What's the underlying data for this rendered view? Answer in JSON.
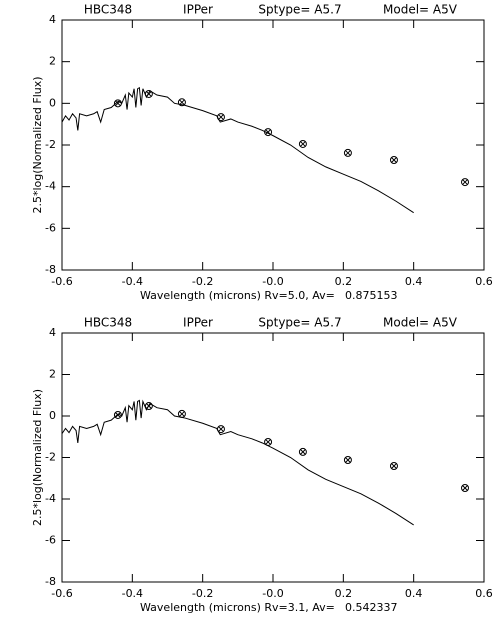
{
  "chart_data": [
    {
      "type": "line",
      "title": [
        "HBC348",
        "IPPer",
        "Sptype= A5.7",
        "Model= A5V"
      ],
      "xlabel": "Wavelength (microns) Rv=5.0, Av=",
      "av": "0.875153",
      "ylabel": "2.5*log(Normalized Flux)",
      "xlim": [
        -0.6,
        0.6
      ],
      "xticks": [
        -0.6,
        -0.4,
        -0.2,
        {
          "value": 0,
          "label": "-0.0"
        },
        0.2,
        0.4,
        0.6
      ],
      "ylim": [
        -8,
        4
      ],
      "yticks": [
        -8,
        -6,
        -4,
        -2,
        0,
        2,
        4
      ],
      "series": [
        {
          "type": "line",
          "color": "#000000",
          "x": [
            -0.6,
            -0.59,
            -0.58,
            -0.57,
            -0.56,
            -0.555,
            -0.55,
            -0.53,
            -0.51,
            -0.5,
            -0.49,
            -0.48,
            -0.46,
            -0.44,
            -0.43,
            -0.42,
            -0.415,
            -0.41,
            -0.4,
            -0.395,
            -0.39,
            -0.385,
            -0.38,
            -0.375,
            -0.37,
            -0.365,
            -0.36,
            -0.35,
            -0.33,
            -0.3,
            -0.28,
            -0.25,
            -0.2,
            -0.16,
            -0.15,
            -0.12,
            -0.1,
            -0.06,
            -0.03,
            0.0,
            0.05,
            0.1,
            0.15,
            0.2,
            0.25,
            0.3,
            0.35,
            0.4
          ],
          "values": [
            -0.9,
            -0.6,
            -0.8,
            -0.5,
            -0.7,
            -1.3,
            -0.5,
            -0.6,
            -0.5,
            -0.4,
            -0.9,
            -0.3,
            -0.2,
            0.1,
            0.0,
            0.4,
            -0.3,
            0.5,
            0.3,
            0.7,
            -0.2,
            0.7,
            0.75,
            -0.1,
            0.7,
            0.5,
            0.3,
            0.6,
            0.4,
            0.3,
            0.0,
            -0.1,
            -0.35,
            -0.6,
            -0.9,
            -0.75,
            -0.9,
            -1.1,
            -1.3,
            -1.55,
            -2.0,
            -2.6,
            -3.05,
            -3.4,
            -3.75,
            -4.2,
            -4.7,
            -5.25
          ]
        },
        {
          "type": "scatter",
          "color": "#000000",
          "x": [
            -0.441,
            -0.353,
            -0.259,
            -0.148,
            -0.014,
            0.085,
            0.213,
            0.344,
            0.546
          ],
          "values": [
            0.0,
            0.45,
            0.05,
            -0.66,
            -1.38,
            -1.95,
            -2.38,
            -2.72,
            -3.78
          ]
        }
      ]
    },
    {
      "type": "line",
      "title": [
        "HBC348",
        "IPPer",
        "Sptype= A5.7",
        "Model= A5V"
      ],
      "xlabel": "Wavelength (microns) Rv=3.1, Av=",
      "av": "0.542337",
      "ylabel": "2.5*log(Normalized Flux)",
      "xlim": [
        -0.6,
        0.6
      ],
      "xticks": [
        -0.6,
        -0.4,
        -0.2,
        {
          "value": 0,
          "label": "-0.0"
        },
        0.2,
        0.4,
        0.6
      ],
      "ylim": [
        -8,
        4
      ],
      "yticks": [
        -8,
        -6,
        -4,
        -2,
        0,
        2,
        4
      ],
      "series": [
        {
          "type": "line",
          "color": "#000000",
          "x": [
            -0.6,
            -0.59,
            -0.58,
            -0.57,
            -0.56,
            -0.555,
            -0.55,
            -0.53,
            -0.51,
            -0.5,
            -0.49,
            -0.48,
            -0.46,
            -0.44,
            -0.43,
            -0.42,
            -0.415,
            -0.41,
            -0.4,
            -0.395,
            -0.39,
            -0.385,
            -0.38,
            -0.375,
            -0.37,
            -0.365,
            -0.36,
            -0.35,
            -0.33,
            -0.3,
            -0.28,
            -0.25,
            -0.2,
            -0.16,
            -0.15,
            -0.12,
            -0.1,
            -0.06,
            -0.03,
            0.0,
            0.05,
            0.1,
            0.15,
            0.2,
            0.25,
            0.3,
            0.35,
            0.4
          ],
          "values": [
            -0.85,
            -0.6,
            -0.8,
            -0.5,
            -0.7,
            -1.3,
            -0.5,
            -0.6,
            -0.5,
            -0.4,
            -0.9,
            -0.3,
            -0.2,
            0.1,
            0.0,
            0.4,
            -0.3,
            0.5,
            0.3,
            0.7,
            -0.2,
            0.7,
            0.75,
            -0.1,
            0.7,
            0.5,
            0.3,
            0.6,
            0.4,
            0.3,
            0.0,
            -0.1,
            -0.35,
            -0.6,
            -0.9,
            -0.75,
            -0.9,
            -1.1,
            -1.3,
            -1.55,
            -2.0,
            -2.6,
            -3.05,
            -3.4,
            -3.75,
            -4.2,
            -4.7,
            -5.25
          ]
        },
        {
          "type": "scatter",
          "color": "#000000",
          "x": [
            -0.441,
            -0.353,
            -0.259,
            -0.148,
            -0.014,
            0.085,
            0.213,
            0.344,
            0.546
          ],
          "values": [
            0.05,
            0.48,
            0.1,
            -0.63,
            -1.25,
            -1.73,
            -2.12,
            -2.41,
            -3.47
          ]
        }
      ]
    }
  ]
}
